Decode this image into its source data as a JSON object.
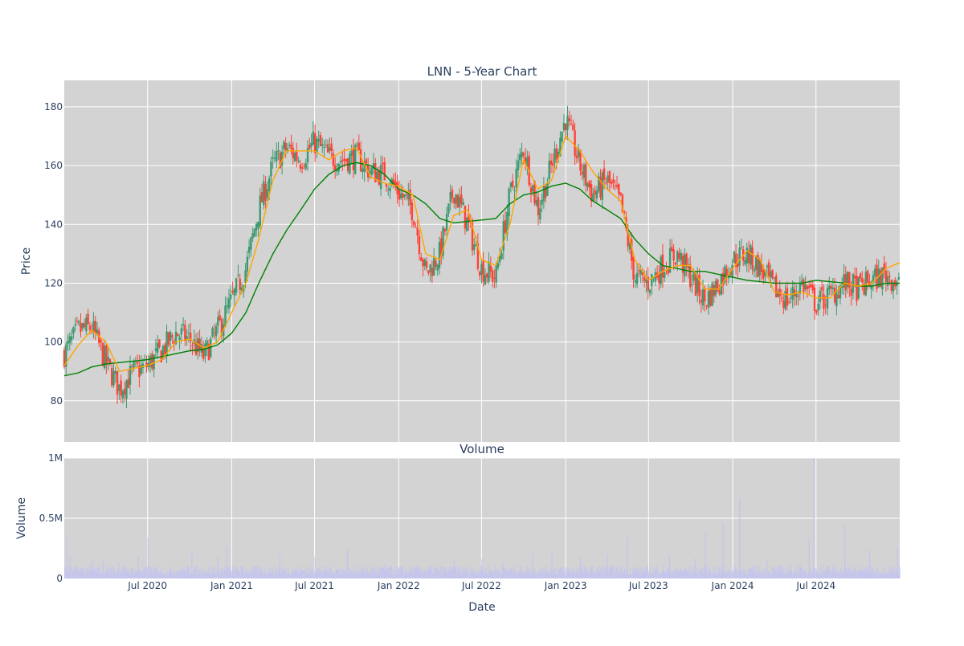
{
  "chart_data": [
    {
      "type": "candlestick",
      "title": "LNN - 5-Year Chart",
      "xlabel": "",
      "ylabel": "Price",
      "x_range": [
        "2020-01-01",
        "2024-12-31"
      ],
      "ylim": [
        66,
        189
      ],
      "y_ticks": [
        80,
        100,
        120,
        140,
        160,
        180
      ],
      "x_ticks": [
        "Jul 2020",
        "Jan 2021",
        "Jul 2021",
        "Jan 2022",
        "Jul 2022",
        "Jan 2023",
        "Jul 2023",
        "Jan 2024",
        "Jul 2024"
      ],
      "x_tick_dates": [
        "2020-07-01",
        "2021-01-01",
        "2021-07-01",
        "2022-01-01",
        "2022-07-01",
        "2023-01-01",
        "2023-07-01",
        "2024-01-01",
        "2024-07-01"
      ],
      "grid": true,
      "colors": {
        "up": "#3d9970",
        "down": "#ff4136",
        "ma_short": "#ffa500",
        "ma_long": "#008000",
        "plot_bg": "#d3d3d3"
      },
      "close_series": {
        "x": [
          "2020-01-01",
          "2020-02-01",
          "2020-03-01",
          "2020-04-01",
          "2020-05-01",
          "2020-06-01",
          "2020-07-01",
          "2020-08-01",
          "2020-09-01",
          "2020-10-01",
          "2020-11-01",
          "2020-12-01",
          "2021-01-01",
          "2021-02-01",
          "2021-03-01",
          "2021-04-01",
          "2021-05-01",
          "2021-06-01",
          "2021-07-01",
          "2021-08-01",
          "2021-09-01",
          "2021-10-01",
          "2021-11-01",
          "2021-12-01",
          "2022-01-01",
          "2022-02-01",
          "2022-03-01",
          "2022-04-01",
          "2022-05-01",
          "2022-06-01",
          "2022-07-01",
          "2022-08-01",
          "2022-09-01",
          "2022-10-01",
          "2022-11-01",
          "2022-12-01",
          "2023-01-01",
          "2023-02-01",
          "2023-03-01",
          "2023-04-01",
          "2023-05-01",
          "2023-06-01",
          "2023-07-01",
          "2023-08-01",
          "2023-09-01",
          "2023-10-01",
          "2023-11-01",
          "2023-12-01",
          "2024-01-01",
          "2024-02-01",
          "2024-03-01",
          "2024-04-01",
          "2024-05-01",
          "2024-06-01",
          "2024-07-01",
          "2024-08-01",
          "2024-09-01",
          "2024-10-01",
          "2024-11-01",
          "2024-12-01",
          "2024-12-31"
        ],
        "y": [
          96,
          104,
          105,
          93,
          84,
          90,
          92,
          97,
          103,
          101,
          95,
          104,
          114,
          125,
          145,
          160,
          166,
          162,
          168,
          163,
          162,
          163,
          158,
          157,
          151,
          145,
          123,
          130,
          152,
          140,
          125,
          122,
          150,
          166,
          145,
          160,
          176,
          160,
          150,
          155,
          147,
          122,
          120,
          126,
          130,
          122,
          114,
          120,
          128,
          130,
          125,
          118,
          114,
          120,
          113,
          116,
          120,
          118,
          121,
          123,
          120
        ]
      },
      "ma_short": {
        "x": [
          "2020-01-01",
          "2020-02-01",
          "2020-03-01",
          "2020-04-01",
          "2020-05-01",
          "2020-06-01",
          "2020-07-01",
          "2020-08-01",
          "2020-09-01",
          "2020-10-01",
          "2020-11-01",
          "2020-12-01",
          "2021-01-01",
          "2021-02-01",
          "2021-03-01",
          "2021-04-01",
          "2021-05-01",
          "2021-06-01",
          "2021-07-01",
          "2021-08-01",
          "2021-09-01",
          "2021-10-01",
          "2021-11-01",
          "2021-12-01",
          "2022-01-01",
          "2022-02-01",
          "2022-03-01",
          "2022-04-01",
          "2022-05-01",
          "2022-06-01",
          "2022-07-01",
          "2022-08-01",
          "2022-09-01",
          "2022-10-01",
          "2022-11-01",
          "2022-12-01",
          "2023-01-01",
          "2023-02-01",
          "2023-03-01",
          "2023-04-01",
          "2023-05-01",
          "2023-06-01",
          "2023-07-01",
          "2023-08-01",
          "2023-09-01",
          "2023-10-01",
          "2023-11-01",
          "2023-12-01",
          "2024-01-01",
          "2024-02-01",
          "2024-03-01",
          "2024-04-01",
          "2024-05-01",
          "2024-06-01",
          "2024-07-01",
          "2024-08-01",
          "2024-09-01",
          "2024-10-01",
          "2024-11-01",
          "2024-12-01",
          "2024-12-31"
        ],
        "y": [
          92,
          99,
          104,
          100,
          90,
          91,
          92,
          94,
          100,
          101,
          98,
          100,
          110,
          120,
          135,
          155,
          165,
          165,
          165,
          162,
          165,
          166,
          156,
          154,
          153,
          150,
          130,
          128,
          143,
          145,
          128,
          126,
          140,
          162,
          152,
          155,
          170,
          165,
          158,
          152,
          148,
          128,
          121,
          124,
          126,
          126,
          118,
          118,
          125,
          131,
          128,
          117,
          116,
          117,
          115,
          115,
          120,
          119,
          120,
          125,
          127
        ]
      },
      "ma_long": {
        "x": [
          "2020-01-01",
          "2020-02-01",
          "2020-03-01",
          "2020-04-01",
          "2020-05-01",
          "2020-06-01",
          "2020-07-01",
          "2020-08-01",
          "2020-09-01",
          "2020-10-01",
          "2020-11-01",
          "2020-12-01",
          "2021-01-01",
          "2021-02-01",
          "2021-03-01",
          "2021-04-01",
          "2021-05-01",
          "2021-06-01",
          "2021-07-01",
          "2021-08-01",
          "2021-09-01",
          "2021-10-01",
          "2021-11-01",
          "2021-12-01",
          "2022-01-01",
          "2022-02-01",
          "2022-03-01",
          "2022-04-01",
          "2022-05-01",
          "2022-06-01",
          "2022-07-01",
          "2022-08-01",
          "2022-09-01",
          "2022-10-01",
          "2022-11-01",
          "2022-12-01",
          "2023-01-01",
          "2023-02-01",
          "2023-03-01",
          "2023-04-01",
          "2023-05-01",
          "2023-06-01",
          "2023-07-01",
          "2023-08-01",
          "2023-09-01",
          "2023-10-01",
          "2023-11-01",
          "2023-12-01",
          "2024-01-01",
          "2024-02-01",
          "2024-03-01",
          "2024-04-01",
          "2024-05-01",
          "2024-06-01",
          "2024-07-01",
          "2024-08-01",
          "2024-09-01",
          "2024-10-01",
          "2024-11-01",
          "2024-12-01",
          "2024-12-31"
        ],
        "y": [
          88.5,
          89.5,
          91.5,
          92.5,
          93,
          93.5,
          94,
          95,
          96,
          97,
          97.5,
          99,
          103,
          110,
          120,
          130,
          138,
          145,
          152,
          157,
          160,
          161,
          160,
          157,
          152,
          150,
          147,
          142,
          140.5,
          141,
          141.5,
          142,
          147,
          150,
          151,
          153,
          154,
          152,
          148,
          145,
          142,
          135,
          130,
          126,
          125,
          124,
          124,
          123,
          122,
          121,
          120.5,
          120,
          120,
          120,
          121,
          120.5,
          120,
          119,
          119,
          120,
          120
        ]
      }
    },
    {
      "type": "bar",
      "title": "Volume",
      "xlabel": "Date",
      "ylabel": "Volume",
      "ylim": [
        0,
        1000000
      ],
      "y_ticks": [
        0,
        500000,
        1000000
      ],
      "y_tick_labels": [
        "0",
        "0.5M",
        "1M"
      ],
      "x_ticks": [
        "Jul 2020",
        "Jan 2021",
        "Jul 2021",
        "Jan 2022",
        "Jul 2022",
        "Jan 2023",
        "Jul 2023",
        "Jan 2024",
        "Jul 2024"
      ],
      "grid": true,
      "colors": {
        "bar": "#c4c4ee"
      },
      "baseline": 50000,
      "spikes": {
        "x": [
          "2020-01-05",
          "2020-01-12",
          "2020-03-01",
          "2020-03-25",
          "2020-04-28",
          "2020-06-10",
          "2020-07-01",
          "2020-10-05",
          "2020-12-01",
          "2020-12-20",
          "2021-04-15",
          "2021-07-01",
          "2021-09-10",
          "2021-12-01",
          "2022-02-15",
          "2022-05-01",
          "2022-07-01",
          "2022-08-15",
          "2022-10-20",
          "2022-12-01",
          "2023-02-01",
          "2023-04-01",
          "2023-05-15",
          "2023-08-15",
          "2023-10-10",
          "2023-11-01",
          "2023-12-10",
          "2024-01-15",
          "2024-03-15",
          "2024-06-15",
          "2024-06-25",
          "2024-09-01",
          "2024-10-25",
          "2024-12-25"
        ],
        "y": [
          370000,
          190000,
          160000,
          150000,
          140000,
          190000,
          340000,
          230000,
          180000,
          260000,
          200000,
          180000,
          240000,
          120000,
          100000,
          150000,
          160000,
          140000,
          200000,
          240000,
          170000,
          200000,
          350000,
          200000,
          170000,
          380000,
          460000,
          660000,
          150000,
          340000,
          1000000,
          440000,
          240000,
          260000
        ]
      }
    }
  ]
}
